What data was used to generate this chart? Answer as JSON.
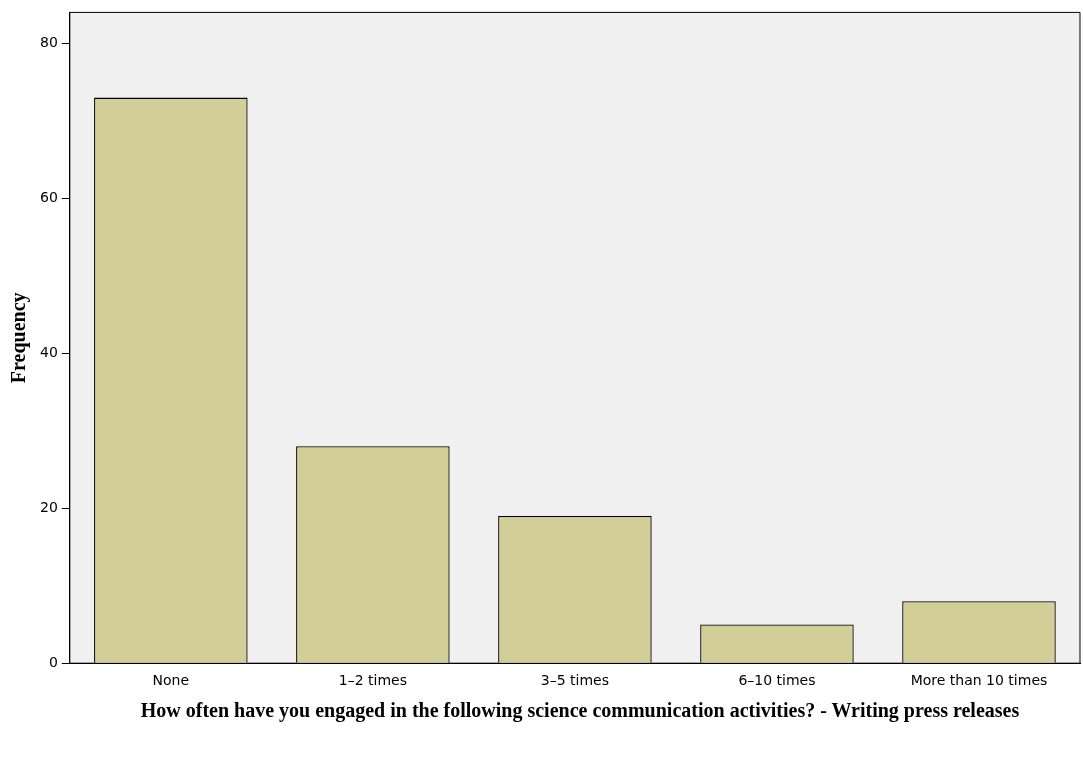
{
  "chart_data": {
    "type": "bar",
    "xlabel": "How often have you engaged in the following science communication activities? - Writing press releases",
    "ylabel": "Frequency",
    "categories": [
      "None",
      "1–2 times",
      "3–5 times",
      "6–10 times",
      "More than 10 times"
    ],
    "values": [
      73,
      28,
      19,
      5,
      8
    ],
    "color": "#d3ce97",
    "ylim": [
      0,
      84
    ],
    "yticks": [
      0,
      20,
      40,
      60,
      80
    ],
    "grid": false,
    "legend": false
  }
}
